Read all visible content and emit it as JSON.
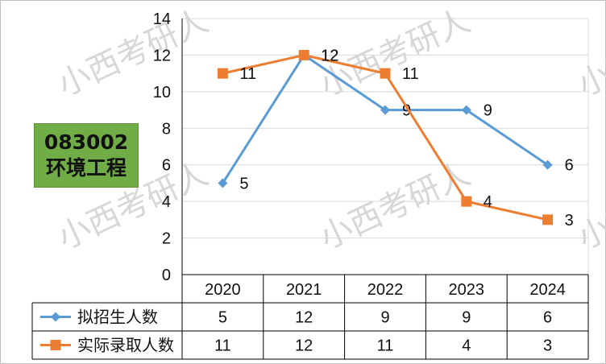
{
  "badge": {
    "code": "083002",
    "name": "环境工程"
  },
  "watermark": "小西考研人",
  "chart_data": {
    "type": "line",
    "x": [
      "2020",
      "2021",
      "2022",
      "2023",
      "2024"
    ],
    "ylim": [
      0,
      14
    ],
    "yticks": [
      0,
      2,
      4,
      6,
      8,
      10,
      12,
      14
    ],
    "grid": true,
    "legend": "bottom table",
    "series": [
      {
        "name": "拟招生人数",
        "values": [
          5,
          12,
          9,
          9,
          6
        ],
        "color": "#5b9bd5",
        "marker": "diamond"
      },
      {
        "name": "实际录取人数",
        "values": [
          11,
          12,
          11,
          4,
          3
        ],
        "color": "#ed7d31",
        "marker": "square"
      }
    ]
  }
}
